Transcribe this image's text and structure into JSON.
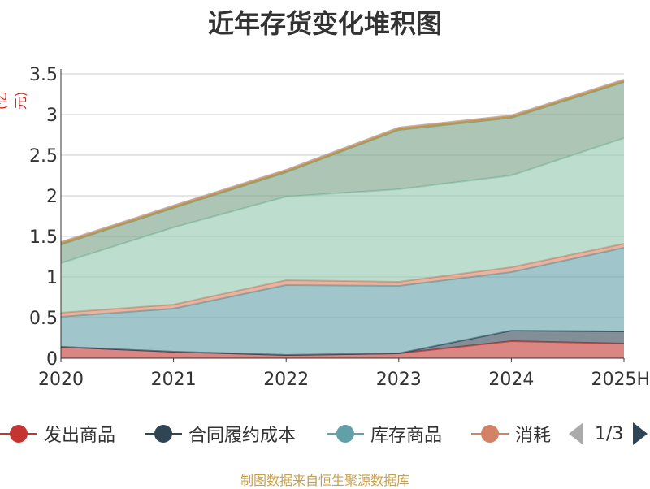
{
  "chart_data": {
    "type": "area",
    "title": "近年存货变化堆积图",
    "unit_label": "(亿元)",
    "categories": [
      "2020",
      "2021",
      "2022",
      "2023",
      "2024",
      "2025H"
    ],
    "ylim": [
      0,
      3.5
    ],
    "yticks": [
      "0",
      "0.5",
      "1",
      "1.5",
      "2",
      "2.5",
      "3",
      "3.5"
    ],
    "grid": true,
    "stacked": true,
    "series": [
      {
        "name": "发出商品",
        "color": "#c23531",
        "values": [
          0.14,
          0.08,
          0.04,
          0.06,
          0.21,
          0.18
        ]
      },
      {
        "name": "合同履约成本",
        "color": "#2f4554",
        "values": [
          0.0,
          0.0,
          0.0,
          0.0,
          0.13,
          0.15
        ]
      },
      {
        "name": "库存商品",
        "color": "#61a0a8",
        "values": [
          0.37,
          0.53,
          0.86,
          0.83,
          0.72,
          1.03
        ]
      },
      {
        "name": "消耗",
        "color": "#d48265",
        "values": [
          0.05,
          0.05,
          0.06,
          0.05,
          0.06,
          0.05
        ]
      },
      {
        "name": "",
        "color": "#91c7ae",
        "values": [
          0.61,
          0.95,
          1.03,
          1.14,
          1.13,
          1.3
        ]
      },
      {
        "name": "",
        "color": "#749f83",
        "values": [
          0.23,
          0.24,
          0.3,
          0.73,
          0.71,
          0.69
        ]
      },
      {
        "name": "",
        "color": "#ca8622",
        "values": [
          0.02,
          0.02,
          0.02,
          0.02,
          0.02,
          0.02
        ]
      },
      {
        "name": "",
        "color": "#bda29a",
        "values": [
          0.01,
          0.01,
          0.01,
          0.01,
          0.01,
          0.01
        ]
      }
    ]
  },
  "legend": {
    "items": [
      {
        "label": "发出商品",
        "color": "#c23531"
      },
      {
        "label": "合同履约成本",
        "color": "#2f4554"
      },
      {
        "label": "库存商品",
        "color": "#61a0a8"
      },
      {
        "label": "消耗",
        "color": "#d48265"
      }
    ],
    "page": "1/3"
  },
  "source": "制图数据来自恒生聚源数据库"
}
